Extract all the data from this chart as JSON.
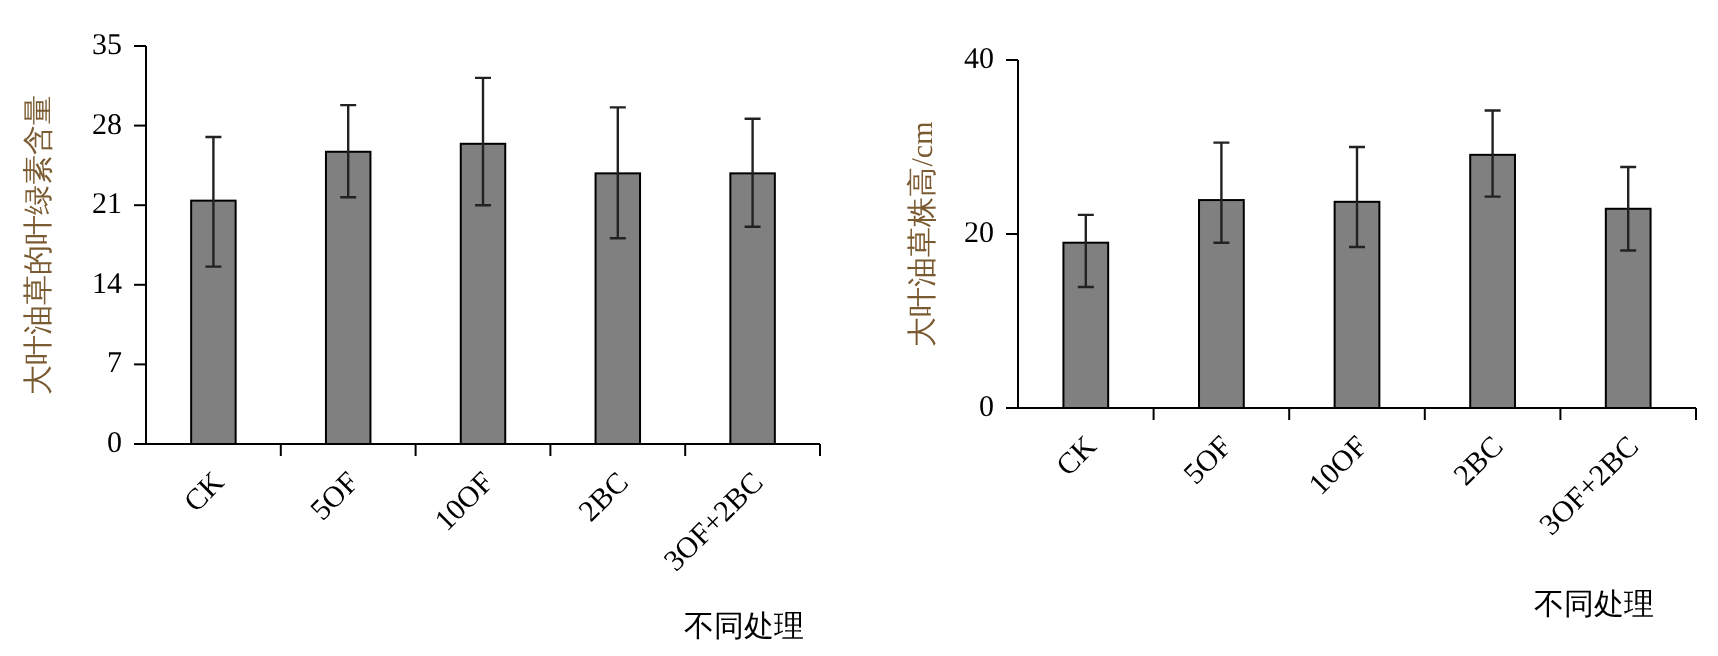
{
  "chart_data": [
    {
      "type": "bar",
      "ylabel": "大叶油草的叶绿素含量",
      "xlabel": "不同处理",
      "categories": [
        "CK",
        "5OF",
        "10OF",
        "2BC",
        "3OF+2BC"
      ],
      "values": [
        21.4,
        25.7,
        26.4,
        23.8,
        23.8
      ],
      "errors": [
        [
          15.6,
          27.0
        ],
        [
          21.7,
          29.8
        ],
        [
          21.0,
          32.2
        ],
        [
          18.1,
          29.6
        ],
        [
          19.1,
          28.6
        ]
      ],
      "color": "#808080",
      "ylim": [
        0,
        35
      ],
      "yticks": [
        0,
        7,
        14,
        21,
        28,
        35
      ]
    },
    {
      "type": "bar",
      "ylabel": "大叶油草株高/cm",
      "xlabel": "不同处理",
      "categories": [
        "CK",
        "5OF",
        "10OF",
        "2BC",
        "3OF+2BC"
      ],
      "values": [
        19.0,
        23.9,
        23.7,
        29.1,
        22.9
      ],
      "errors": [
        [
          13.9,
          22.2
        ],
        [
          19.0,
          30.5
        ],
        [
          18.5,
          30.0
        ],
        [
          24.3,
          34.2
        ],
        [
          18.1,
          27.7
        ]
      ],
      "color": "#808080",
      "ylim": [
        0,
        40
      ],
      "yticks": [
        0,
        20,
        40
      ]
    }
  ]
}
